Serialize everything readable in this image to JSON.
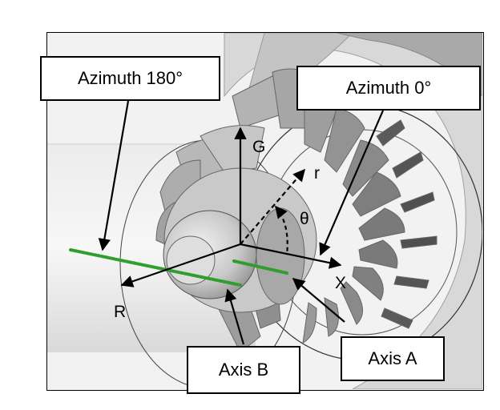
{
  "figure": {
    "callouts": {
      "azimuth_180": "Azimuth 180°",
      "azimuth_0": "Azimuth 0°",
      "axis_a": "Axis A",
      "axis_b": "Axis B"
    },
    "axis_labels": {
      "g": "G",
      "r_small": "r",
      "theta": "θ",
      "x": "X",
      "r_big": "R"
    }
  },
  "colors": {
    "background": "#f2f2f2",
    "surface_light": "#e6e6e6",
    "surface_mid": "#bdbdbd",
    "surface_dark": "#7a7a7a",
    "probe_green": "#3cc43c",
    "arrow": "#000000"
  }
}
